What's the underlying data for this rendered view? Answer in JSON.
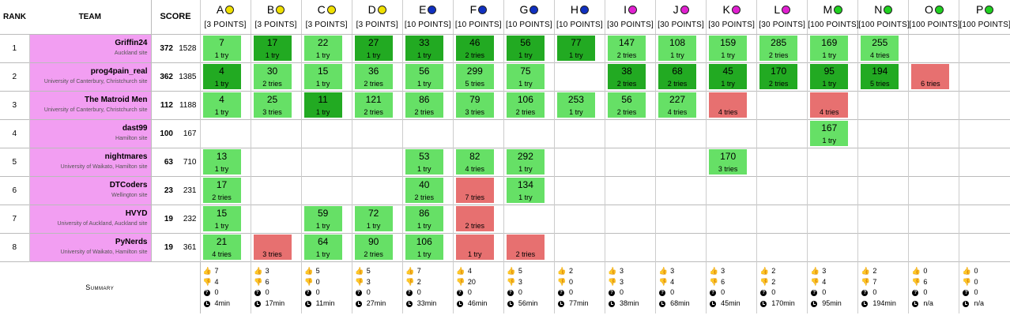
{
  "header": {
    "rank": "RANK",
    "team": "TEAM",
    "score": "SCORE"
  },
  "problems": [
    {
      "label": "A",
      "color": "#f0e000",
      "points": "[3 POINTS]"
    },
    {
      "label": "B",
      "color": "#f0e000",
      "points": "[3 POINTS]"
    },
    {
      "label": "C",
      "color": "#f0e000",
      "points": "[3 POINTS]"
    },
    {
      "label": "D",
      "color": "#f0e000",
      "points": "[3 POINTS]"
    },
    {
      "label": "E",
      "color": "#1030c0",
      "points": "[10 POINTS]"
    },
    {
      "label": "F",
      "color": "#1030c0",
      "points": "[10 POINTS]"
    },
    {
      "label": "G",
      "color": "#1030c0",
      "points": "[10 POINTS]"
    },
    {
      "label": "H",
      "color": "#1030c0",
      "points": "[10 POINTS]"
    },
    {
      "label": "I",
      "color": "#e020d0",
      "points": "[30 POINTS]"
    },
    {
      "label": "J",
      "color": "#e020d0",
      "points": "[30 POINTS]"
    },
    {
      "label": "K",
      "color": "#e020d0",
      "points": "[30 POINTS]"
    },
    {
      "label": "L",
      "color": "#e020d0",
      "points": "[30 POINTS]"
    },
    {
      "label": "M",
      "color": "#20d020",
      "points": "[100 POINTS]"
    },
    {
      "label": "N",
      "color": "#20d020",
      "points": "[100 POINTS]"
    },
    {
      "label": "O",
      "color": "#20d020",
      "points": "[100 POINTS]"
    },
    {
      "label": "P",
      "color": "#20d020",
      "points": "[100 POINTS]"
    }
  ],
  "teams": [
    {
      "rank": "1",
      "name": "Griffin24",
      "site": "Auckland site",
      "solved": "372",
      "score": "1528",
      "results": [
        {
          "status": "ok",
          "time": "7",
          "tries": "1 try"
        },
        {
          "status": "first",
          "time": "17",
          "tries": "1 try"
        },
        {
          "status": "ok",
          "time": "22",
          "tries": "1 try"
        },
        {
          "status": "first",
          "time": "27",
          "tries": "1 try"
        },
        {
          "status": "first",
          "time": "33",
          "tries": "1 try"
        },
        {
          "status": "first",
          "time": "46",
          "tries": "2 tries"
        },
        {
          "status": "first",
          "time": "56",
          "tries": "1 try"
        },
        {
          "status": "first",
          "time": "77",
          "tries": "1 try"
        },
        {
          "status": "ok",
          "time": "147",
          "tries": "2 tries"
        },
        {
          "status": "ok",
          "time": "108",
          "tries": "1 try"
        },
        {
          "status": "ok",
          "time": "159",
          "tries": "1 try"
        },
        {
          "status": "ok",
          "time": "285",
          "tries": "2 tries"
        },
        {
          "status": "ok",
          "time": "169",
          "tries": "1 try"
        },
        {
          "status": "ok",
          "time": "255",
          "tries": "4 tries"
        },
        null,
        null
      ]
    },
    {
      "rank": "2",
      "name": "prog4pain_real",
      "site": "University of Canterbury, Christchurch site",
      "solved": "362",
      "score": "1385",
      "results": [
        {
          "status": "first",
          "time": "4",
          "tries": "1 try"
        },
        {
          "status": "ok",
          "time": "30",
          "tries": "2 tries"
        },
        {
          "status": "ok",
          "time": "15",
          "tries": "1 try"
        },
        {
          "status": "ok",
          "time": "36",
          "tries": "2 tries"
        },
        {
          "status": "ok",
          "time": "56",
          "tries": "1 try"
        },
        {
          "status": "ok",
          "time": "299",
          "tries": "5 tries"
        },
        {
          "status": "ok",
          "time": "75",
          "tries": "1 try"
        },
        null,
        {
          "status": "first",
          "time": "38",
          "tries": "2 tries"
        },
        {
          "status": "first",
          "time": "68",
          "tries": "2 tries"
        },
        {
          "status": "first",
          "time": "45",
          "tries": "1 try"
        },
        {
          "status": "first",
          "time": "170",
          "tries": "2 tries"
        },
        {
          "status": "first",
          "time": "95",
          "tries": "1 try"
        },
        {
          "status": "first",
          "time": "194",
          "tries": "5 tries"
        },
        {
          "status": "fail",
          "time": "",
          "tries": "6 tries"
        },
        null
      ]
    },
    {
      "rank": "3",
      "name": "The Matroid Men",
      "site": "University of Canterbury, Christchurch site",
      "solved": "112",
      "score": "1188",
      "results": [
        {
          "status": "ok",
          "time": "4",
          "tries": "1 try"
        },
        {
          "status": "ok",
          "time": "25",
          "tries": "3 tries"
        },
        {
          "status": "first",
          "time": "11",
          "tries": "1 try"
        },
        {
          "status": "ok",
          "time": "121",
          "tries": "2 tries"
        },
        {
          "status": "ok",
          "time": "86",
          "tries": "2 tries"
        },
        {
          "status": "ok",
          "time": "79",
          "tries": "3 tries"
        },
        {
          "status": "ok",
          "time": "106",
          "tries": "2 tries"
        },
        {
          "status": "ok",
          "time": "253",
          "tries": "1 try"
        },
        {
          "status": "ok",
          "time": "56",
          "tries": "2 tries"
        },
        {
          "status": "ok",
          "time": "227",
          "tries": "4 tries"
        },
        {
          "status": "fail",
          "time": "",
          "tries": "4 tries"
        },
        null,
        {
          "status": "fail",
          "time": "",
          "tries": "4 tries"
        },
        null,
        null,
        null
      ]
    },
    {
      "rank": "4",
      "name": "dast99",
      "site": "Hamilton site",
      "solved": "100",
      "score": "167",
      "results": [
        null,
        null,
        null,
        null,
        null,
        null,
        null,
        null,
        null,
        null,
        null,
        null,
        {
          "status": "ok",
          "time": "167",
          "tries": "1 try"
        },
        null,
        null,
        null
      ]
    },
    {
      "rank": "5",
      "name": "nightmares",
      "site": "University of Waikato, Hamilton site",
      "solved": "63",
      "score": "710",
      "results": [
        {
          "status": "ok",
          "time": "13",
          "tries": "1 try"
        },
        null,
        null,
        null,
        {
          "status": "ok",
          "time": "53",
          "tries": "1 try"
        },
        {
          "status": "ok",
          "time": "82",
          "tries": "4 tries"
        },
        {
          "status": "ok",
          "time": "292",
          "tries": "1 try"
        },
        null,
        null,
        null,
        {
          "status": "ok",
          "time": "170",
          "tries": "3 tries"
        },
        null,
        null,
        null,
        null,
        null
      ]
    },
    {
      "rank": "6",
      "name": "DTCoders",
      "site": "Wellington site",
      "solved": "23",
      "score": "231",
      "results": [
        {
          "status": "ok",
          "time": "17",
          "tries": "2 tries"
        },
        null,
        null,
        null,
        {
          "status": "ok",
          "time": "40",
          "tries": "2 tries"
        },
        {
          "status": "fail",
          "time": "",
          "tries": "7 tries"
        },
        {
          "status": "ok",
          "time": "134",
          "tries": "1 try"
        },
        null,
        null,
        null,
        null,
        null,
        null,
        null,
        null,
        null
      ]
    },
    {
      "rank": "7",
      "name": "HVYD",
      "site": "University of Auckland, Auckland site",
      "solved": "19",
      "score": "232",
      "results": [
        {
          "status": "ok",
          "time": "15",
          "tries": "1 try"
        },
        null,
        {
          "status": "ok",
          "time": "59",
          "tries": "1 try"
        },
        {
          "status": "ok",
          "time": "72",
          "tries": "1 try"
        },
        {
          "status": "ok",
          "time": "86",
          "tries": "1 try"
        },
        {
          "status": "fail",
          "time": "",
          "tries": "2 tries"
        },
        null,
        null,
        null,
        null,
        null,
        null,
        null,
        null,
        null,
        null
      ]
    },
    {
      "rank": "8",
      "name": "PyNerds",
      "site": "University of Waikato, Hamilton site",
      "solved": "19",
      "score": "361",
      "results": [
        {
          "status": "ok",
          "time": "21",
          "tries": "4 tries"
        },
        {
          "status": "fail",
          "time": "",
          "tries": "3 tries"
        },
        {
          "status": "ok",
          "time": "64",
          "tries": "1 try"
        },
        {
          "status": "ok",
          "time": "90",
          "tries": "2 tries"
        },
        {
          "status": "ok",
          "time": "106",
          "tries": "1 try"
        },
        {
          "status": "fail",
          "time": "",
          "tries": "1 try"
        },
        {
          "status": "fail",
          "time": "",
          "tries": "2 tries"
        },
        null,
        null,
        null,
        null,
        null,
        null,
        null,
        null,
        null
      ]
    }
  ],
  "summary": {
    "label": "Summary",
    "columns": [
      {
        "accepted": "7",
        "rejected": "4",
        "pending": "0",
        "first": "4min"
      },
      {
        "accepted": "3",
        "rejected": "6",
        "pending": "0",
        "first": "17min"
      },
      {
        "accepted": "5",
        "rejected": "0",
        "pending": "0",
        "first": "11min"
      },
      {
        "accepted": "5",
        "rejected": "3",
        "pending": "0",
        "first": "27min"
      },
      {
        "accepted": "7",
        "rejected": "2",
        "pending": "0",
        "first": "33min"
      },
      {
        "accepted": "4",
        "rejected": "20",
        "pending": "0",
        "first": "46min"
      },
      {
        "accepted": "5",
        "rejected": "3",
        "pending": "0",
        "first": "56min"
      },
      {
        "accepted": "2",
        "rejected": "0",
        "pending": "0",
        "first": "77min"
      },
      {
        "accepted": "3",
        "rejected": "3",
        "pending": "0",
        "first": "38min"
      },
      {
        "accepted": "3",
        "rejected": "4",
        "pending": "0",
        "first": "68min"
      },
      {
        "accepted": "3",
        "rejected": "6",
        "pending": "0",
        "first": "45min"
      },
      {
        "accepted": "2",
        "rejected": "2",
        "pending": "0",
        "first": "170min"
      },
      {
        "accepted": "3",
        "rejected": "4",
        "pending": "0",
        "first": "95min"
      },
      {
        "accepted": "2",
        "rejected": "7",
        "pending": "0",
        "first": "194min"
      },
      {
        "accepted": "0",
        "rejected": "6",
        "pending": "0",
        "first": "n/a"
      },
      {
        "accepted": "0",
        "rejected": "0",
        "pending": "0",
        "first": "n/a"
      }
    ]
  }
}
